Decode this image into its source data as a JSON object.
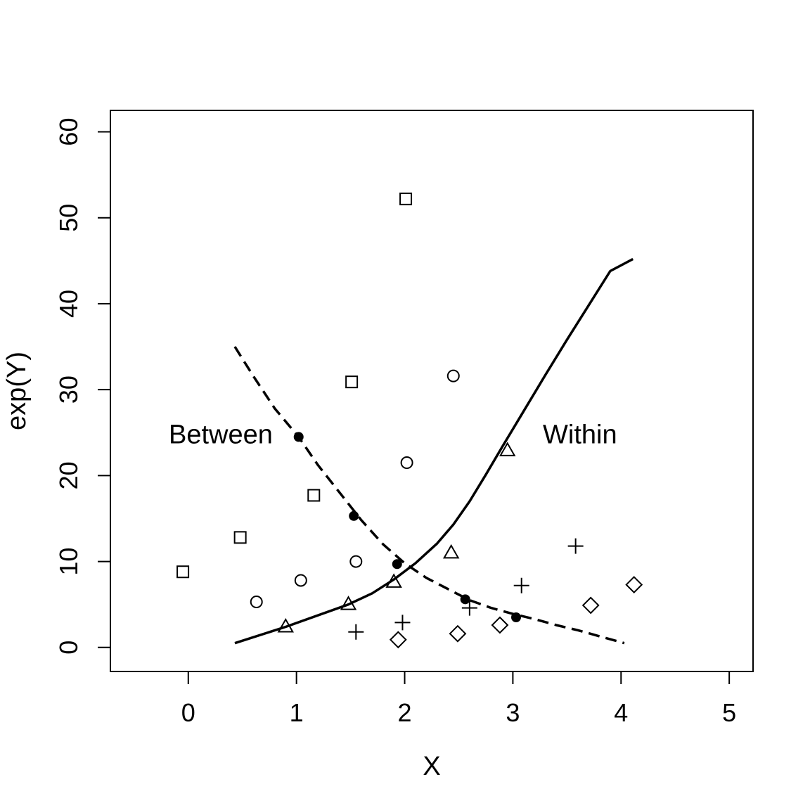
{
  "chart_data": {
    "type": "scatter",
    "title": "",
    "xlabel": "X",
    "ylabel": "exp(Y)",
    "xlim": [
      -0.72,
      5.22
    ],
    "ylim": [
      -2.8,
      62.5
    ],
    "xticks": [
      0,
      1,
      2,
      3,
      4,
      5
    ],
    "yticks": [
      0,
      10,
      20,
      30,
      40,
      50,
      60
    ],
    "grid": false,
    "legend": "none",
    "series": [
      {
        "marker": "square",
        "points": [
          [
            -0.05,
            8.8
          ],
          [
            0.48,
            12.8
          ],
          [
            1.16,
            17.7
          ],
          [
            1.51,
            30.9
          ],
          [
            2.01,
            52.2
          ]
        ]
      },
      {
        "marker": "circle",
        "points": [
          [
            0.63,
            5.3
          ],
          [
            1.04,
            7.8
          ],
          [
            1.55,
            10.0
          ],
          [
            2.02,
            21.5
          ],
          [
            2.45,
            31.6
          ]
        ]
      },
      {
        "marker": "triangle",
        "points": [
          [
            0.9,
            2.4
          ],
          [
            1.48,
            5.0
          ],
          [
            1.9,
            7.6
          ],
          [
            2.43,
            11.0
          ],
          [
            2.95,
            22.9
          ]
        ]
      },
      {
        "marker": "plus",
        "points": [
          [
            1.55,
            1.8
          ],
          [
            1.98,
            2.9
          ],
          [
            2.6,
            4.6
          ],
          [
            3.08,
            7.2
          ],
          [
            3.58,
            11.8
          ]
        ]
      },
      {
        "marker": "diamond",
        "points": [
          [
            1.94,
            0.9
          ],
          [
            2.49,
            1.6
          ],
          [
            2.88,
            2.6
          ],
          [
            3.72,
            4.9
          ],
          [
            4.12,
            7.3
          ]
        ]
      },
      {
        "marker": "filled-circle",
        "points": [
          [
            1.02,
            24.5
          ],
          [
            1.53,
            15.3
          ],
          [
            1.93,
            9.7
          ],
          [
            2.56,
            5.6
          ],
          [
            3.03,
            3.5
          ]
        ]
      }
    ],
    "lines": [
      {
        "name": "Within",
        "style": "solid",
        "points": [
          [
            0.43,
            0.5
          ],
          [
            0.9,
            2.4
          ],
          [
            1.48,
            5.0
          ],
          [
            1.7,
            6.3
          ],
          [
            1.9,
            7.9
          ],
          [
            2.1,
            9.8
          ],
          [
            2.3,
            12.1
          ],
          [
            2.45,
            14.3
          ],
          [
            2.6,
            17.0
          ],
          [
            2.75,
            20.1
          ],
          [
            2.9,
            23.3
          ],
          [
            3.1,
            27.5
          ],
          [
            3.3,
            31.7
          ],
          [
            3.5,
            35.8
          ],
          [
            3.7,
            39.8
          ],
          [
            3.9,
            43.8
          ],
          [
            4.11,
            45.2
          ]
        ]
      },
      {
        "name": "Between",
        "style": "dashed",
        "points": [
          [
            0.43,
            35.0
          ],
          [
            0.6,
            31.6
          ],
          [
            0.8,
            27.8
          ],
          [
            1.02,
            24.5
          ],
          [
            1.2,
            21.2
          ],
          [
            1.4,
            18.0
          ],
          [
            1.6,
            14.8
          ],
          [
            1.8,
            12.0
          ],
          [
            2.0,
            9.8
          ],
          [
            2.2,
            8.1
          ],
          [
            2.4,
            6.8
          ],
          [
            2.6,
            5.5
          ],
          [
            2.8,
            4.6
          ],
          [
            3.0,
            3.9
          ],
          [
            3.2,
            3.3
          ],
          [
            3.4,
            2.6
          ],
          [
            3.6,
            2.0
          ],
          [
            3.8,
            1.3
          ],
          [
            4.03,
            0.5
          ]
        ]
      }
    ],
    "annotations": [
      {
        "text": "Between",
        "x": 0.3,
        "y": 24.8
      },
      {
        "text": "Within",
        "x": 3.62,
        "y": 24.8
      }
    ]
  }
}
